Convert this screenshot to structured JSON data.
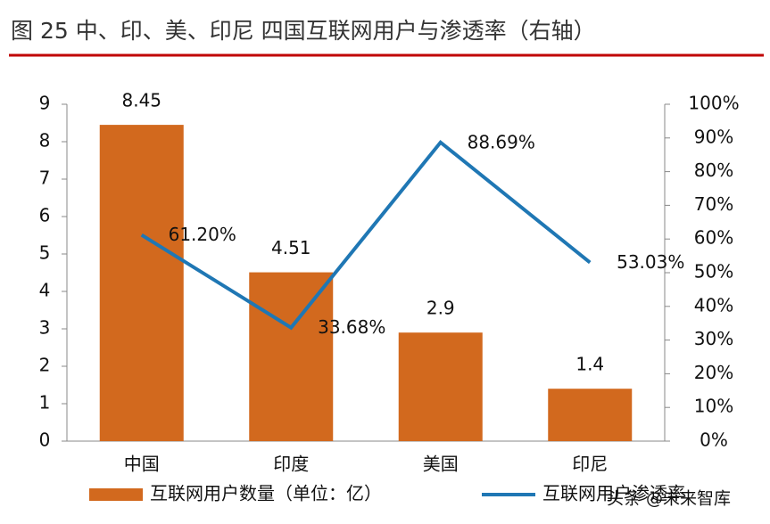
{
  "chart_data": {
    "type": "bar",
    "title": "图 25  中、印、美、印尼 四国互联网用户与渗透率（右轴）",
    "categories": [
      "中国",
      "印度",
      "美国",
      "印尼"
    ],
    "series": [
      {
        "name": "互联网用户数量（单位：亿）",
        "color": "#d2691e",
        "type": "bar",
        "values": [
          8.45,
          4.51,
          2.9,
          1.4
        ]
      },
      {
        "name": "互联网用户渗透率",
        "color": "#1f77b4",
        "type": "line",
        "axis": "y2",
        "values": [
          61.2,
          33.68,
          88.69,
          53.03
        ],
        "value_labels": [
          "61.20%",
          "33.68%",
          "88.69%",
          "53.03%"
        ]
      }
    ],
    "ylim": [
      0,
      9
    ],
    "yticks": [
      0,
      1,
      2,
      3,
      4,
      5,
      6,
      7,
      8,
      9
    ],
    "y2lim": [
      0,
      100
    ],
    "y2ticks": [
      {
        "value": 0,
        "label": "0%"
      },
      {
        "value": 10,
        "label": "10%"
      },
      {
        "value": 20,
        "label": "20%"
      },
      {
        "value": 30,
        "label": "30%"
      },
      {
        "value": 40,
        "label": "40%"
      },
      {
        "value": 50,
        "label": "50%"
      },
      {
        "value": 60,
        "label": "60%"
      },
      {
        "value": 70,
        "label": "70%"
      },
      {
        "value": 80,
        "label": "80%"
      },
      {
        "value": 90,
        "label": "90%"
      },
      {
        "value": 100,
        "label": "100%"
      }
    ],
    "legend": "bottom",
    "watermark": "头条 @未来智库"
  }
}
